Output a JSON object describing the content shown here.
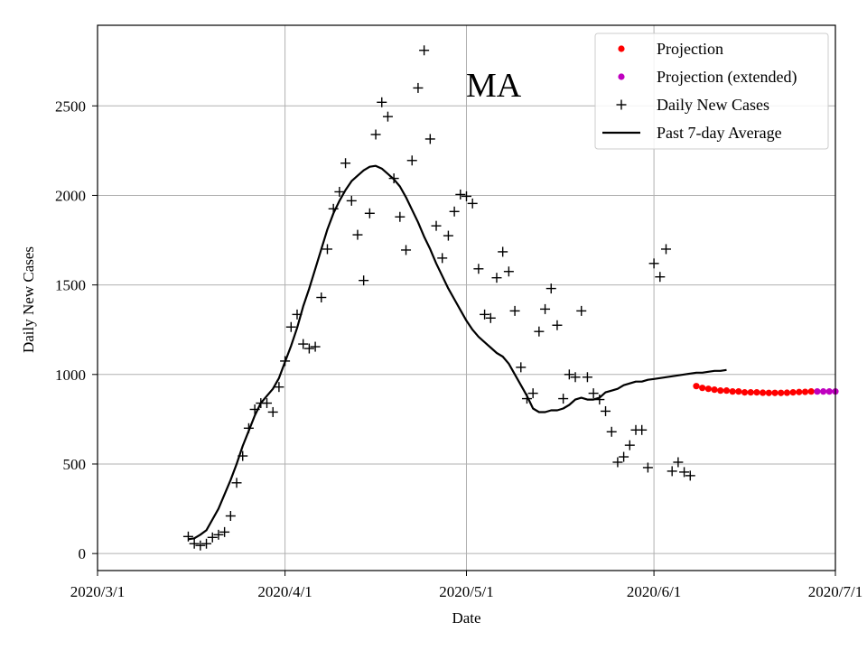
{
  "chart_data": {
    "type": "scatter+line",
    "title": "",
    "annotation": "MA",
    "xlabel": "Date",
    "ylabel": "Daily New Cases",
    "x_start_date": "2020-03-01",
    "xlim_days": [
      0,
      122
    ],
    "ylim": [
      -95,
      2950
    ],
    "x_ticks": [
      {
        "day": 0,
        "label": "2020/3/1"
      },
      {
        "day": 31,
        "label": "2020/4/1"
      },
      {
        "day": 61,
        "label": "2020/5/1"
      },
      {
        "day": 92,
        "label": "2020/6/1"
      },
      {
        "day": 122,
        "label": "2020/7/1"
      }
    ],
    "y_ticks": [
      0,
      500,
      1000,
      1500,
      2000,
      2500
    ],
    "grid": true,
    "legend_position": "top-right",
    "legend": [
      {
        "key": "projection",
        "label": "Projection",
        "marker": "dot",
        "color": "#ff0000"
      },
      {
        "key": "projection_extended",
        "label": "Projection (extended)",
        "marker": "dot",
        "color": "#bf00bf"
      },
      {
        "key": "daily",
        "label": "Daily New Cases",
        "marker": "plus",
        "color": "#000000"
      },
      {
        "key": "average",
        "label": "Past 7-day Average",
        "marker": "line",
        "color": "#000000"
      }
    ],
    "series": {
      "daily": {
        "name": "Daily New Cases",
        "x_days": [
          15,
          16,
          17,
          18,
          19,
          20,
          21,
          22,
          23,
          24,
          25,
          26,
          27,
          28,
          29,
          30,
          31,
          32,
          33,
          34,
          35,
          36,
          37,
          38,
          39,
          40,
          41,
          42,
          43,
          44,
          45,
          46,
          47,
          48,
          49,
          50,
          51,
          52,
          53,
          54,
          55,
          56,
          57,
          58,
          59,
          60,
          61,
          62,
          63,
          64,
          65,
          66,
          67,
          68,
          69,
          70,
          71,
          72,
          73,
          74,
          75,
          76,
          77,
          78,
          79,
          80,
          81,
          82,
          83,
          84,
          85,
          86,
          87,
          88,
          89,
          90,
          91,
          92,
          93,
          94,
          95,
          96,
          97,
          98
        ],
        "values": [
          95,
          55,
          45,
          55,
          90,
          105,
          120,
          210,
          395,
          545,
          700,
          805,
          840,
          840,
          790,
          930,
          1075,
          1265,
          1335,
          1170,
          1145,
          1155,
          1430,
          1700,
          1925,
          2020,
          2180,
          1970,
          1780,
          1525,
          1900,
          2340,
          2520,
          2440,
          2095,
          1880,
          1695,
          2195,
          2600,
          2810,
          2315,
          1830,
          1650,
          1775,
          1910,
          2005,
          1995,
          1955,
          1590,
          1335,
          1315,
          1540,
          1685,
          1575,
          1355,
          1040,
          865,
          895,
          1240,
          1365,
          1480,
          1275,
          865,
          1000,
          985,
          1355,
          985,
          895,
          860,
          795,
          680,
          510,
          540,
          605,
          690,
          690,
          480,
          1620,
          1545,
          1700,
          460,
          510,
          455,
          435
        ]
      },
      "average": {
        "name": "Past 7-day Average",
        "x_days": [
          15,
          16,
          17,
          18,
          19,
          20,
          21,
          22,
          23,
          24,
          25,
          26,
          27,
          28,
          29,
          30,
          31,
          32,
          33,
          34,
          35,
          36,
          37,
          38,
          39,
          40,
          41,
          42,
          43,
          44,
          45,
          46,
          47,
          48,
          49,
          50,
          51,
          52,
          53,
          54,
          55,
          56,
          57,
          58,
          59,
          60,
          61,
          62,
          63,
          64,
          65,
          66,
          67,
          68,
          69,
          70,
          71,
          72,
          73,
          74,
          75,
          76,
          77,
          78,
          79,
          80,
          81,
          82,
          83,
          84,
          85,
          86,
          87,
          88,
          89,
          90,
          91,
          92,
          93,
          94,
          95,
          96,
          97,
          98,
          99,
          100,
          101,
          102,
          103,
          104
        ],
        "values": [
          80,
          85,
          105,
          130,
          190,
          250,
          330,
          410,
          500,
          600,
          685,
          770,
          840,
          880,
          920,
          980,
          1070,
          1160,
          1260,
          1380,
          1480,
          1590,
          1700,
          1810,
          1900,
          1970,
          2030,
          2080,
          2110,
          2140,
          2160,
          2165,
          2150,
          2120,
          2090,
          2050,
          1990,
          1920,
          1850,
          1770,
          1700,
          1620,
          1550,
          1480,
          1420,
          1360,
          1300,
          1250,
          1210,
          1180,
          1150,
          1120,
          1100,
          1060,
          1000,
          940,
          880,
          810,
          790,
          790,
          800,
          800,
          810,
          830,
          860,
          870,
          860,
          860,
          870,
          900,
          910,
          920,
          940,
          950,
          960,
          960,
          970,
          975,
          980,
          985,
          990,
          995,
          1000,
          1005,
          1010,
          1010,
          1015,
          1020,
          1020,
          1025
        ],
        "_note": "approximation of the curve"
      },
      "projection": {
        "name": "Projection",
        "x_days": [
          99,
          100,
          101,
          102,
          103,
          104,
          105,
          106,
          107,
          108,
          109,
          110,
          111,
          112,
          113,
          114,
          115,
          116,
          117,
          118
        ],
        "values": [
          935,
          925,
          920,
          915,
          910,
          910,
          905,
          905,
          900,
          900,
          900,
          898,
          897,
          897,
          897,
          898,
          900,
          902,
          903,
          905
        ]
      },
      "projection_extended": {
        "name": "Projection (extended)",
        "x_days": [
          119,
          120,
          121,
          122
        ],
        "values": [
          905,
          905,
          905,
          905
        ]
      }
    }
  }
}
